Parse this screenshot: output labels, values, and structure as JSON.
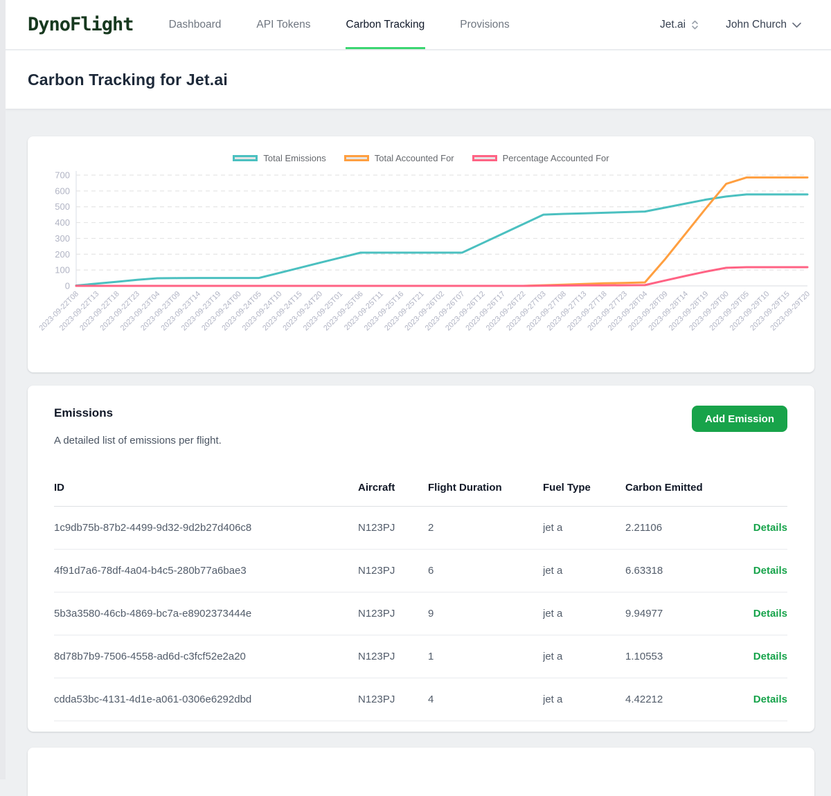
{
  "header": {
    "logo": "DynoFlight",
    "nav": [
      {
        "label": "Dashboard",
        "active": false
      },
      {
        "label": "API Tokens",
        "active": false
      },
      {
        "label": "Carbon Tracking",
        "active": true
      },
      {
        "label": "Provisions",
        "active": false
      }
    ],
    "org_selector": "Jet.ai",
    "user_menu": "John Church"
  },
  "page": {
    "title": "Carbon Tracking for Jet.ai"
  },
  "chart_data": {
    "type": "line",
    "title": "",
    "xlabel": "",
    "ylabel": "",
    "ylim": [
      0,
      700
    ],
    "yticks": [
      0,
      100,
      200,
      300,
      400,
      500,
      600,
      700
    ],
    "grid": "horizontal-dashed",
    "legend_position": "top",
    "x": [
      "2023-09-22T08",
      "2023-09-22T13",
      "2023-09-22T18",
      "2023-09-22T23",
      "2023-09-23T04",
      "2023-09-23T09",
      "2023-09-23T14",
      "2023-09-23T19",
      "2023-09-24T00",
      "2023-09-24T05",
      "2023-09-24T10",
      "2023-09-24T15",
      "2023-09-24T20",
      "2023-09-25T01",
      "2023-09-25T06",
      "2023-09-25T11",
      "2023-09-25T16",
      "2023-09-25T21",
      "2023-09-26T02",
      "2023-09-26T07",
      "2023-09-26T12",
      "2023-09-26T17",
      "2023-09-26T22",
      "2023-09-27T03",
      "2023-09-27T08",
      "2023-09-27T13",
      "2023-09-27T18",
      "2023-09-27T23",
      "2023-09-28T04",
      "2023-09-28T09",
      "2023-09-28T14",
      "2023-09-28T19",
      "2023-09-29T00",
      "2023-09-29T05",
      "2023-09-29T10",
      "2023-09-29T15",
      "2023-09-29T20"
    ],
    "series": [
      {
        "name": "Total Emissions",
        "color": "#4BC0C0",
        "values": [
          2,
          14,
          26,
          38,
          48,
          49,
          50,
          50,
          50,
          50,
          82,
          114,
          146,
          178,
          210,
          210,
          210,
          210,
          210,
          210,
          270,
          330,
          390,
          450,
          455,
          458,
          462,
          466,
          470,
          495,
          520,
          545,
          565,
          578,
          578,
          578,
          578
        ]
      },
      {
        "name": "Total Accounted For",
        "color": "#FF9F40",
        "values": [
          0,
          0,
          0,
          0,
          0,
          0,
          0,
          0,
          0,
          0,
          0,
          0,
          0,
          0,
          0,
          0,
          0,
          0,
          0,
          0,
          0,
          0,
          0,
          4,
          8,
          12,
          16,
          19,
          22,
          170,
          330,
          490,
          645,
          685,
          685,
          685,
          685
        ]
      },
      {
        "name": "Percentage Accounted For",
        "color": "#FF6384",
        "values": [
          0,
          0,
          0,
          0,
          0,
          0,
          0,
          0,
          0,
          0,
          0,
          0,
          0,
          0,
          0,
          0,
          0,
          0,
          0,
          0,
          0,
          0,
          0,
          1,
          2,
          3,
          3,
          4,
          5,
          34,
          63,
          90,
          114,
          118,
          118,
          118,
          118
        ]
      }
    ]
  },
  "emissions": {
    "title": "Emissions",
    "subtitle": "A detailed list of emissions per flight.",
    "add_button": "Add Emission",
    "table": {
      "columns": [
        "ID",
        "Aircraft",
        "Flight Duration",
        "Fuel Type",
        "Carbon Emitted"
      ],
      "details_label": "Details",
      "rows": [
        {
          "id": "1c9db75b-87b2-4499-9d32-9d2b27d406c8",
          "aircraft": "N123PJ",
          "duration": "2",
          "fuel": "jet a",
          "carbon": "2.21106"
        },
        {
          "id": "4f91d7a6-78df-4a04-b4c5-280b77a6bae3",
          "aircraft": "N123PJ",
          "duration": "6",
          "fuel": "jet a",
          "carbon": "6.63318"
        },
        {
          "id": "5b3a3580-46cb-4869-bc7a-e8902373444e",
          "aircraft": "N123PJ",
          "duration": "9",
          "fuel": "jet a",
          "carbon": "9.94977"
        },
        {
          "id": "8d78b7b9-7506-4558-ad6d-c3fcf52e2a20",
          "aircraft": "N123PJ",
          "duration": "1",
          "fuel": "jet a",
          "carbon": "1.10553"
        },
        {
          "id": "cdda53bc-4131-4d1e-a061-0306e6292dbd",
          "aircraft": "N123PJ",
          "duration": "4",
          "fuel": "jet a",
          "carbon": "4.42212"
        }
      ]
    }
  },
  "colors": {
    "accent_green": "#18a34a",
    "nav_underline": "#3bd671",
    "link_green": "#16a34a",
    "logo_green": "#17391f",
    "axis_label": "#b1b4c4",
    "gridline": "#e5e5e5"
  }
}
